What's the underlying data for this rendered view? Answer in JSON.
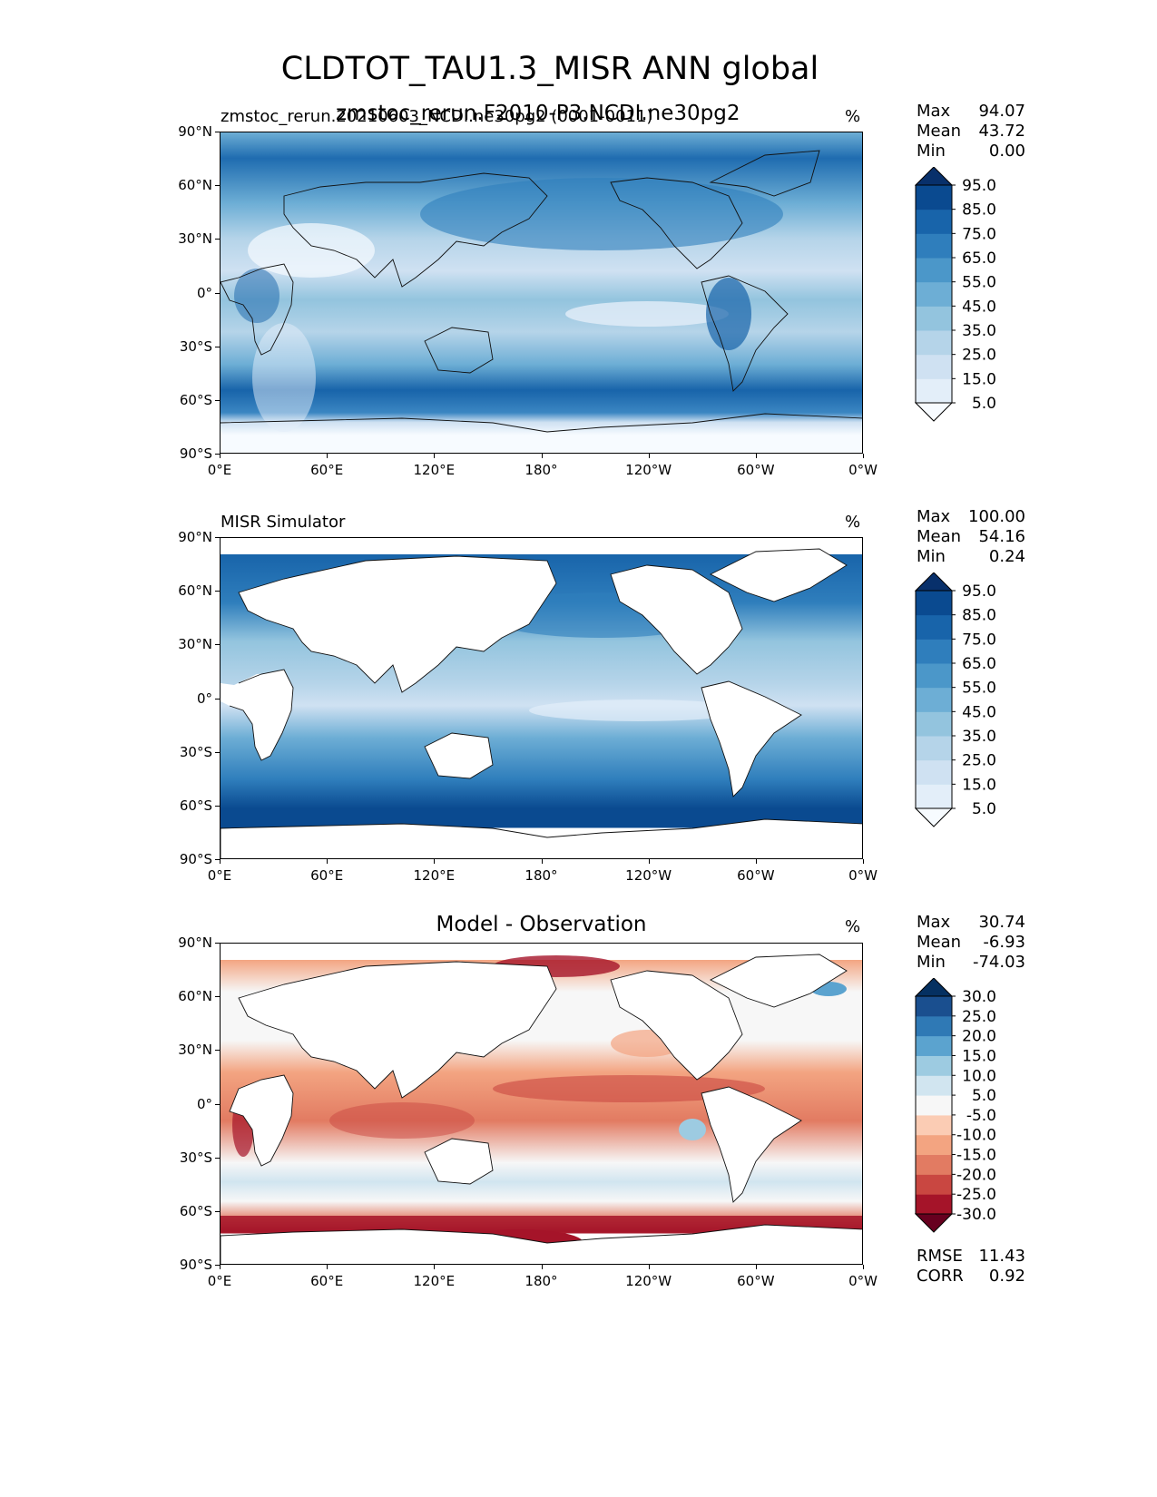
{
  "title": "CLDTOT_TAU1.3_MISR ANN global",
  "lat_ticks": [
    "90°N",
    "60°N",
    "30°N",
    "0°",
    "30°S",
    "60°S",
    "90°S"
  ],
  "lon_ticks": [
    "0°E",
    "60°E",
    "120°E",
    "180°",
    "120°W",
    "60°W",
    "0°W"
  ],
  "units": "%",
  "stat_labels": {
    "max": "Max",
    "mean": "Mean",
    "min": "Min",
    "rmse": "RMSE",
    "corr": "CORR"
  },
  "panels": [
    {
      "left_title": "zmstoc_rerun.20210603_NCDI.ne30pg2 (0001-0011)",
      "center_title": "zmstoc_rerun.F2010-P3.NCDI.ne30pg2",
      "units": "%",
      "max": "94.07",
      "mean": "43.72",
      "min": "0.00"
    },
    {
      "left_title": "MISR Simulator",
      "units": "%",
      "max": "100.00",
      "mean": "54.16",
      "min": "0.24"
    },
    {
      "center_title": "Model - Observation",
      "units": "%",
      "max": "30.74",
      "mean": "-6.93",
      "min": "-74.03",
      "rmse": "11.43",
      "corr": "0.92"
    }
  ],
  "chart_data": [
    {
      "type": "heatmap",
      "title": "zmstoc_rerun.F2010-P3.NCDI.ne30pg2",
      "units": "%",
      "x_range": [
        0,
        360
      ],
      "y_range": [
        -90,
        90
      ],
      "colorbar_levels": [
        "5.0",
        "15.0",
        "25.0",
        "35.0",
        "45.0",
        "55.0",
        "65.0",
        "75.0",
        "85.0",
        "95.0"
      ],
      "colormap": [
        "#f7fbff",
        "#e3eef9",
        "#cfe1f2",
        "#b5d4e9",
        "#93c4de",
        "#6daed5",
        "#4b97c9",
        "#2f7ebc",
        "#1864aa",
        "#0a4a90",
        "#08306b"
      ],
      "stats": {
        "max": 94.07,
        "mean": 43.72,
        "min": 0.0
      }
    },
    {
      "type": "heatmap",
      "title": "MISR Simulator",
      "units": "%",
      "x_range": [
        0,
        360
      ],
      "y_range": [
        -90,
        90
      ],
      "colorbar_levels": [
        "5.0",
        "15.0",
        "25.0",
        "35.0",
        "45.0",
        "55.0",
        "65.0",
        "75.0",
        "85.0",
        "95.0"
      ],
      "colormap": [
        "#f7fbff",
        "#e3eef9",
        "#cfe1f2",
        "#b5d4e9",
        "#93c4de",
        "#6daed5",
        "#4b97c9",
        "#2f7ebc",
        "#1864aa",
        "#0a4a90",
        "#08306b"
      ],
      "stats": {
        "max": 100.0,
        "mean": 54.16,
        "min": 0.24
      }
    },
    {
      "type": "heatmap",
      "title": "Model - Observation",
      "units": "%",
      "x_range": [
        0,
        360
      ],
      "y_range": [
        -90,
        90
      ],
      "colorbar_levels": [
        "-30.0",
        "-25.0",
        "-20.0",
        "-15.0",
        "-10.0",
        "-5.0",
        "5.0",
        "10.0",
        "15.0",
        "20.0",
        "25.0",
        "30.0"
      ],
      "colormap": [
        "#67001f",
        "#a51429",
        "#c94741",
        "#e27b62",
        "#f3a481",
        "#fbccb4",
        "#f7f7f7",
        "#d1e5f0",
        "#9dcbe1",
        "#5ba3cf",
        "#2f79b5",
        "#1a4f8f",
        "#053061"
      ],
      "stats": {
        "max": 30.74,
        "mean": -6.93,
        "min": -74.03,
        "rmse": 11.43,
        "corr": 0.92
      }
    }
  ]
}
